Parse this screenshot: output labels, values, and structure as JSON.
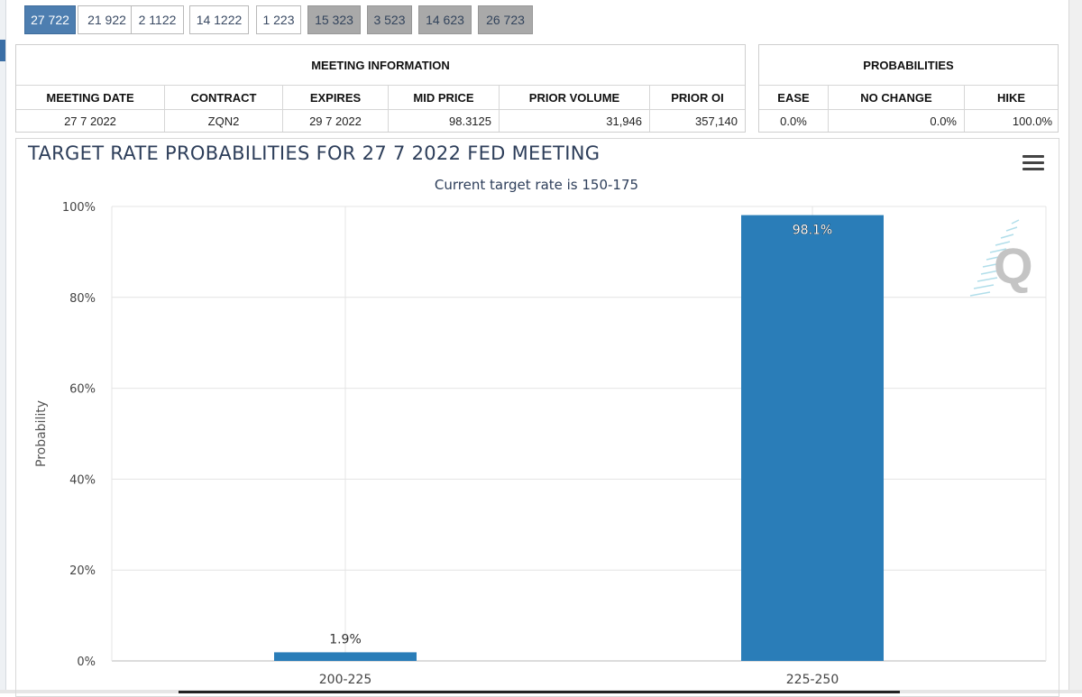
{
  "tabs": [
    {
      "label": "27 722",
      "state": "active"
    },
    {
      "label": "21 922",
      "state": "normal"
    },
    {
      "label": "2 1122",
      "state": "normal"
    },
    {
      "label": "14 1222",
      "state": "normal"
    },
    {
      "label": "1 223",
      "state": "normal"
    },
    {
      "label": "15 323",
      "state": "dim"
    },
    {
      "label": "3 523",
      "state": "dim"
    },
    {
      "label": "14 623",
      "state": "dim"
    },
    {
      "label": "26 723",
      "state": "dim"
    }
  ],
  "meeting_info": {
    "title": "MEETING INFORMATION",
    "headers": [
      "MEETING DATE",
      "CONTRACT",
      "EXPIRES",
      "MID PRICE",
      "PRIOR VOLUME",
      "PRIOR OI"
    ],
    "row": [
      "27 7 2022",
      "ZQN2",
      "29 7 2022",
      "98.3125",
      "31,946",
      "357,140"
    ]
  },
  "probabilities": {
    "title": "PROBABILITIES",
    "headers": [
      "EASE",
      "NO CHANGE",
      "HIKE"
    ],
    "row": [
      "0.0%",
      "0.0%",
      "100.0%"
    ]
  },
  "chart": {
    "title": "TARGET RATE PROBABILITIES FOR 27 7 2022 FED MEETING",
    "subtitle": "Current target rate is 150-175",
    "menu_icon": "hamburger-menu-icon",
    "watermark": "Q"
  },
  "chart_data": {
    "type": "bar",
    "categories": [
      "200-225",
      "225-250"
    ],
    "values": [
      1.9,
      98.1
    ],
    "data_labels": [
      "1.9%",
      "98.1%"
    ],
    "ylabel": "Probability",
    "xlabel": "",
    "ylim": [
      0,
      100
    ],
    "yticks": [
      "0%",
      "20%",
      "40%",
      "60%",
      "80%",
      "100%"
    ],
    "bar_color": "#2a7db8",
    "grid": true
  }
}
